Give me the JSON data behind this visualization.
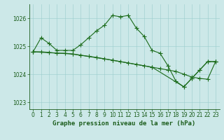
{
  "xlabel": "Graphe pression niveau de la mer (hPa)",
  "ylim": [
    1022.75,
    1026.5
  ],
  "yticks": [
    1023,
    1024,
    1025,
    1026
  ],
  "xlim": [
    -0.5,
    23.5
  ],
  "xticks": [
    0,
    1,
    2,
    3,
    4,
    5,
    6,
    7,
    8,
    9,
    10,
    11,
    12,
    13,
    14,
    15,
    16,
    17,
    18,
    19,
    20,
    21,
    22,
    23
  ],
  "line_color": "#1a6b1a",
  "bg_color": "#cce8e8",
  "grid_color": "#99cccc",
  "series1_x": [
    0,
    1,
    2,
    3,
    4,
    5,
    6,
    7,
    8,
    9,
    10,
    11,
    12,
    13,
    14,
    15,
    16,
    17,
    18,
    19,
    20,
    21,
    22,
    23
  ],
  "series1_y": [
    1024.8,
    1025.3,
    1025.1,
    1024.85,
    1024.85,
    1024.85,
    1025.05,
    1025.3,
    1025.55,
    1025.75,
    1026.1,
    1026.05,
    1026.1,
    1025.65,
    1025.35,
    1024.85,
    1024.75,
    1024.3,
    1023.75,
    1023.55,
    1023.85,
    1024.15,
    1024.45,
    1024.45
  ],
  "series2_x": [
    0,
    1,
    2,
    3,
    4,
    5,
    6,
    7,
    8,
    9,
    10,
    11,
    12,
    13,
    14,
    15,
    16,
    17,
    18,
    19,
    20,
    21,
    22,
    23
  ],
  "series2_y": [
    1024.8,
    1024.8,
    1024.78,
    1024.75,
    1024.75,
    1024.72,
    1024.68,
    1024.64,
    1024.6,
    1024.55,
    1024.5,
    1024.45,
    1024.4,
    1024.35,
    1024.3,
    1024.25,
    1024.2,
    1024.15,
    1024.1,
    1024.0,
    1023.9,
    1023.85,
    1023.82,
    1024.45
  ],
  "series3_x": [
    0,
    5,
    10,
    15,
    19,
    20,
    21,
    22,
    23
  ],
  "series3_y": [
    1024.8,
    1024.72,
    1024.5,
    1024.25,
    1023.55,
    1023.85,
    1024.15,
    1024.45,
    1024.45
  ],
  "text_color": "#1a5c1a",
  "tick_fontsize": 5.5,
  "label_fontsize": 6.5,
  "marker": "+",
  "markersize": 5
}
